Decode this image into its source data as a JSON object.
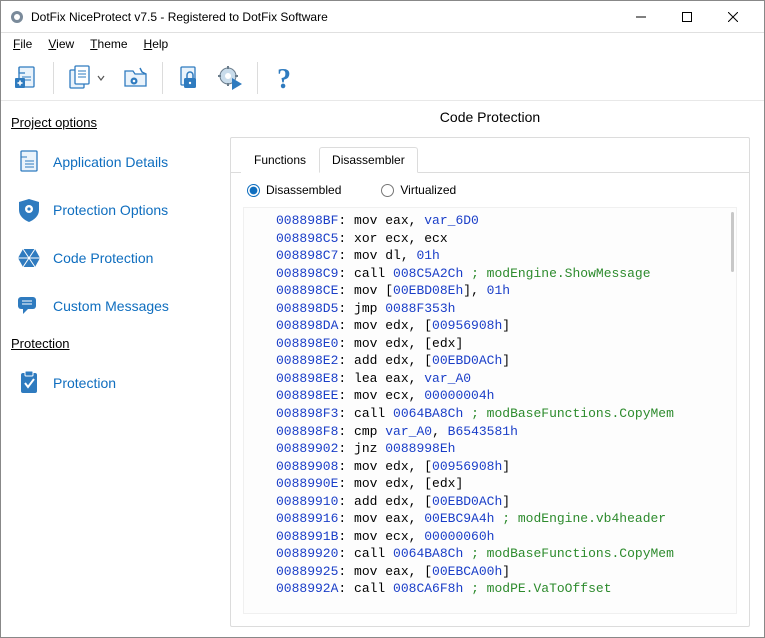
{
  "window": {
    "title": "DotFix NiceProtect v7.5 - Registered to DotFix Software"
  },
  "menu": {
    "file": "File",
    "view": "View",
    "theme": "Theme",
    "help": "Help"
  },
  "side": {
    "group1": "Project options",
    "nav1": "Application Details",
    "nav2": "Protection Options",
    "nav3": "Code Protection",
    "nav4": "Custom Messages",
    "group2": "Protection",
    "nav5": "Protection"
  },
  "main": {
    "heading": "Code Protection",
    "tab1": "Functions",
    "tab2": "Disassembler",
    "radio1": "Disassembled",
    "radio2": "Virtualized"
  },
  "lines": [
    {
      "a": "008898BF",
      "i": "mov eax, ",
      "v": "var_6D0"
    },
    {
      "a": "008898C5",
      "i": "xor ecx, ecx"
    },
    {
      "a": "008898C7",
      "i": "mov dl, ",
      "v": "01h"
    },
    {
      "a": "008898C9",
      "i": "call ",
      "v": "008C5A2Ch",
      "c": " ; modEngine.ShowMessage"
    },
    {
      "a": "008898CE",
      "i": "mov [",
      "v": "00EBD08Eh",
      "i2": "], ",
      "v2": "01h"
    },
    {
      "a": "008898D5",
      "i": "jmp ",
      "v": "0088F353h"
    },
    {
      "a": "008898DA",
      "i": "mov edx, [",
      "v": "00956908h",
      "i2": "]"
    },
    {
      "a": "008898E0",
      "i": "mov edx, [edx]"
    },
    {
      "a": "008898E2",
      "i": "add edx, [",
      "v": "00EBD0ACh",
      "i2": "]"
    },
    {
      "a": "008898E8",
      "i": "lea eax, ",
      "v": "var_A0"
    },
    {
      "a": "008898EE",
      "i": "mov ecx, ",
      "v": "00000004h"
    },
    {
      "a": "008898F3",
      "i": "call ",
      "v": "0064BA8Ch",
      "c": " ; modBaseFunctions.CopyMem"
    },
    {
      "a": "008898F8",
      "i": "cmp ",
      "v": "var_A0",
      "i2": ", ",
      "v2": "B6543581h"
    },
    {
      "a": "00889902",
      "i": "jnz ",
      "v": "0088998Eh"
    },
    {
      "a": "00889908",
      "i": "mov edx, [",
      "v": "00956908h",
      "i2": "]"
    },
    {
      "a": "0088990E",
      "i": "mov edx, [edx]"
    },
    {
      "a": "00889910",
      "i": "add edx, [",
      "v": "00EBD0ACh",
      "i2": "]"
    },
    {
      "a": "00889916",
      "i": "mov eax, ",
      "v": "00EBC9A4h",
      "c": " ; modEngine.vb4header"
    },
    {
      "a": "0088991B",
      "i": "mov ecx, ",
      "v": "00000060h"
    },
    {
      "a": "00889920",
      "i": "call ",
      "v": "0064BA8Ch",
      "c": " ; modBaseFunctions.CopyMem"
    },
    {
      "a": "00889925",
      "i": "mov eax, [",
      "v": "00EBCA00h",
      "i2": "]"
    },
    {
      "a": "0088992A",
      "i": "call ",
      "v": "008CA6F8h",
      "c": " ; modPE.VaToOffset"
    }
  ]
}
